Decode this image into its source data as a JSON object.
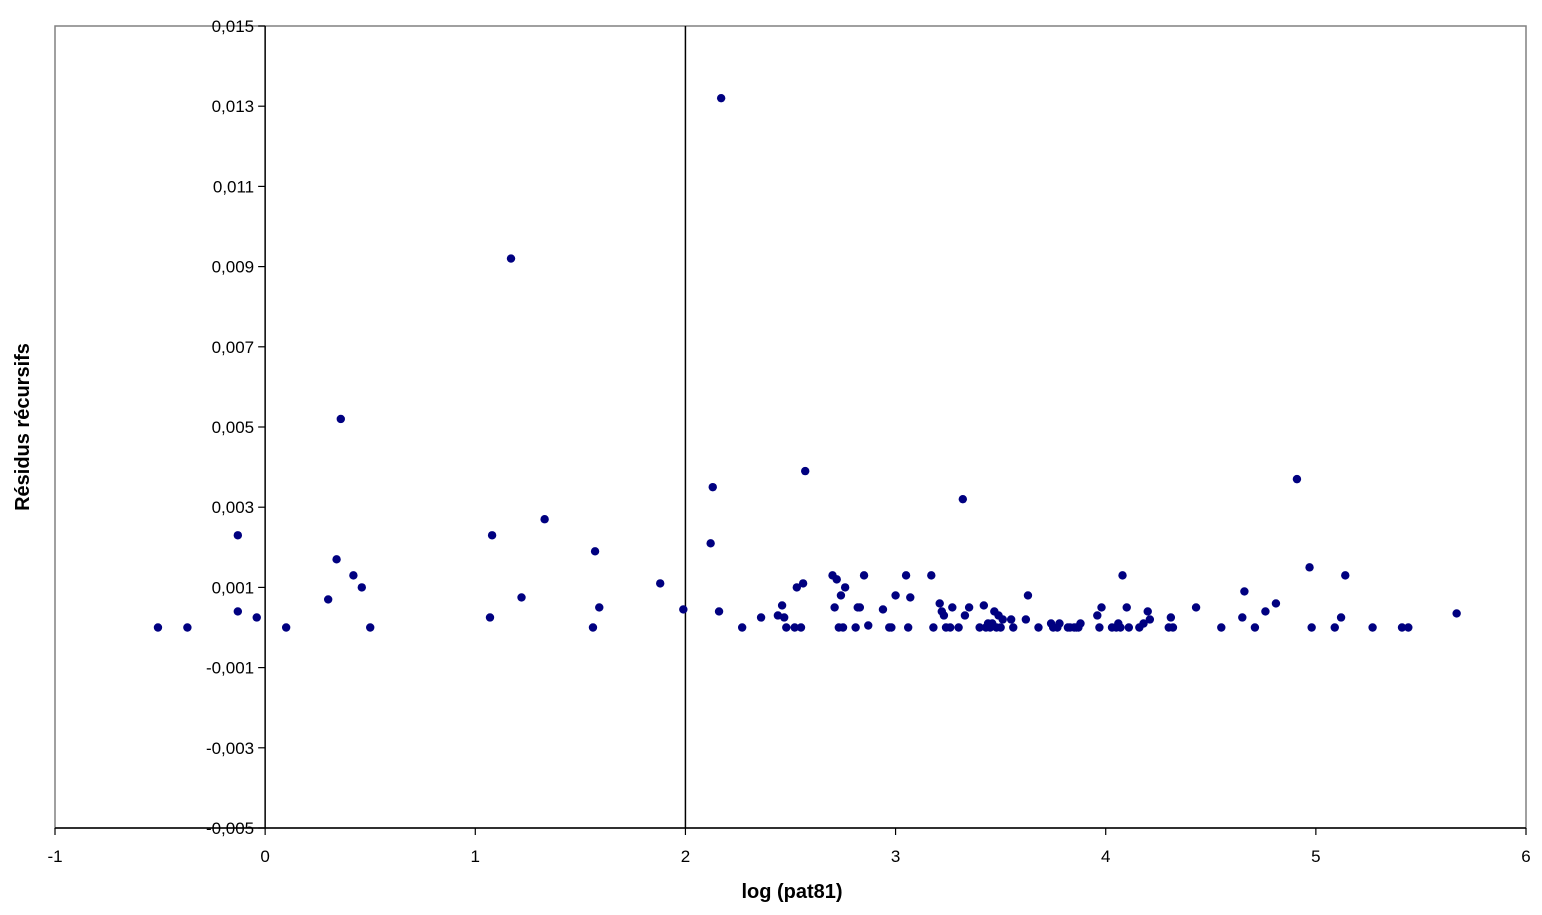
{
  "chart_data": {
    "type": "scatter",
    "title": "",
    "xlabel": "log (pat81)",
    "ylabel": "Résidus récursifs",
    "xlim": [
      -1,
      6
    ],
    "ylim": [
      -0.005,
      0.015
    ],
    "x_ticks": [
      -1,
      0,
      1,
      2,
      3,
      4,
      5,
      6
    ],
    "x_tick_labels": [
      "-1",
      "0",
      "1",
      "2",
      "3",
      "4",
      "5",
      "6"
    ],
    "y_ticks": [
      -0.005,
      -0.003,
      -0.001,
      0.001,
      0.003,
      0.005,
      0.007,
      0.009,
      0.011,
      0.013,
      0.015
    ],
    "y_tick_labels": [
      "-0,005",
      "-0,003",
      "-0,001",
      "0,001",
      "0,003",
      "0,005",
      "0,007",
      "0,009",
      "0,011",
      "0,013",
      "0,015"
    ],
    "vertical_line_x": 2,
    "grid": false,
    "legend": "none",
    "marker_color": "#000080",
    "points": [
      [
        -0.51,
        0.0
      ],
      [
        -0.37,
        0.0
      ],
      [
        -0.13,
        0.0023
      ],
      [
        -0.13,
        0.0004
      ],
      [
        -0.04,
        0.00025
      ],
      [
        0.1,
        0.0
      ],
      [
        0.3,
        0.0007
      ],
      [
        0.34,
        0.0017
      ],
      [
        0.36,
        0.0052
      ],
      [
        0.42,
        0.0013
      ],
      [
        0.46,
        0.001
      ],
      [
        0.5,
        0.0
      ],
      [
        1.07,
        0.00025
      ],
      [
        1.08,
        0.0023
      ],
      [
        1.17,
        0.0092
      ],
      [
        1.22,
        0.00075
      ],
      [
        1.33,
        0.0027
      ],
      [
        1.56,
        0.0
      ],
      [
        1.57,
        0.0019
      ],
      [
        1.59,
        0.0005
      ],
      [
        1.88,
        0.0011
      ],
      [
        1.99,
        0.00045
      ],
      [
        2.12,
        0.0021
      ],
      [
        2.13,
        0.0035
      ],
      [
        2.16,
        0.0004
      ],
      [
        2.17,
        0.0132
      ],
      [
        2.27,
        0.0
      ],
      [
        2.36,
        0.00025
      ],
      [
        2.44,
        0.0003
      ],
      [
        2.46,
        0.00055
      ],
      [
        2.47,
        0.00025
      ],
      [
        2.48,
        0.0
      ],
      [
        2.52,
        0.0
      ],
      [
        2.53,
        0.001
      ],
      [
        2.55,
        0.0
      ],
      [
        2.56,
        0.0011
      ],
      [
        2.57,
        0.0039
      ],
      [
        2.7,
        0.0013
      ],
      [
        2.71,
        0.0005
      ],
      [
        2.72,
        0.0012
      ],
      [
        2.73,
        0.0
      ],
      [
        2.74,
        0.0008
      ],
      [
        2.75,
        0.0
      ],
      [
        2.76,
        0.001
      ],
      [
        2.81,
        0.0
      ],
      [
        2.82,
        0.0005
      ],
      [
        2.83,
        0.0005
      ],
      [
        2.85,
        0.0013
      ],
      [
        2.87,
        5e-05
      ],
      [
        2.94,
        0.00045
      ],
      [
        2.97,
        0.0
      ],
      [
        2.98,
        0.0
      ],
      [
        3.0,
        0.0008
      ],
      [
        3.05,
        0.0013
      ],
      [
        3.06,
        0.0
      ],
      [
        3.07,
        0.00075
      ],
      [
        3.17,
        0.0013
      ],
      [
        3.18,
        0.0
      ],
      [
        3.21,
        0.0006
      ],
      [
        3.22,
        0.0004
      ],
      [
        3.23,
        0.0003
      ],
      [
        3.24,
        0.0
      ],
      [
        3.26,
        0.0
      ],
      [
        3.27,
        0.0005
      ],
      [
        3.3,
        0.0
      ],
      [
        3.32,
        0.0032
      ],
      [
        3.33,
        0.0003
      ],
      [
        3.35,
        0.0005
      ],
      [
        3.4,
        0.0
      ],
      [
        3.42,
        0.00055
      ],
      [
        3.43,
        0.0
      ],
      [
        3.44,
        0.0001
      ],
      [
        3.45,
        0.0
      ],
      [
        3.46,
        0.0001
      ],
      [
        3.47,
        0.0004
      ],
      [
        3.48,
        0.0
      ],
      [
        3.49,
        0.0003
      ],
      [
        3.5,
        0.0
      ],
      [
        3.51,
        0.0002
      ],
      [
        3.55,
        0.0002
      ],
      [
        3.56,
        0.0
      ],
      [
        3.62,
        0.0002
      ],
      [
        3.63,
        0.0008
      ],
      [
        3.68,
        0.0
      ],
      [
        3.74,
        0.0001
      ],
      [
        3.75,
        0.0
      ],
      [
        3.77,
        0.0
      ],
      [
        3.78,
        0.0001
      ],
      [
        3.82,
        0.0
      ],
      [
        3.83,
        0.0
      ],
      [
        3.85,
        0.0
      ],
      [
        3.86,
        0.0
      ],
      [
        3.87,
        0.0
      ],
      [
        3.88,
        0.0001
      ],
      [
        3.96,
        0.0003
      ],
      [
        3.97,
        0.0
      ],
      [
        3.98,
        0.0005
      ],
      [
        4.03,
        0.0
      ],
      [
        4.05,
        0.0
      ],
      [
        4.06,
        0.0001
      ],
      [
        4.07,
        0.0
      ],
      [
        4.08,
        0.0013
      ],
      [
        4.1,
        0.0005
      ],
      [
        4.11,
        0.0
      ],
      [
        4.16,
        0.0
      ],
      [
        4.18,
        0.0001
      ],
      [
        4.2,
        0.0004
      ],
      [
        4.21,
        0.0002
      ],
      [
        4.3,
        0.0
      ],
      [
        4.31,
        0.00025
      ],
      [
        4.32,
        0.0
      ],
      [
        4.43,
        0.0005
      ],
      [
        4.55,
        0.0
      ],
      [
        4.65,
        0.00025
      ],
      [
        4.66,
        0.0009
      ],
      [
        4.71,
        0.0
      ],
      [
        4.76,
        0.0004
      ],
      [
        4.81,
        0.0006
      ],
      [
        4.91,
        0.0037
      ],
      [
        4.97,
        0.0015
      ],
      [
        4.98,
        0.0
      ],
      [
        5.09,
        0.0
      ],
      [
        5.12,
        0.00025
      ],
      [
        5.14,
        0.0013
      ],
      [
        5.27,
        0.0
      ],
      [
        5.41,
        0.0
      ],
      [
        5.44,
        0.0
      ],
      [
        5.67,
        0.00035
      ]
    ]
  }
}
